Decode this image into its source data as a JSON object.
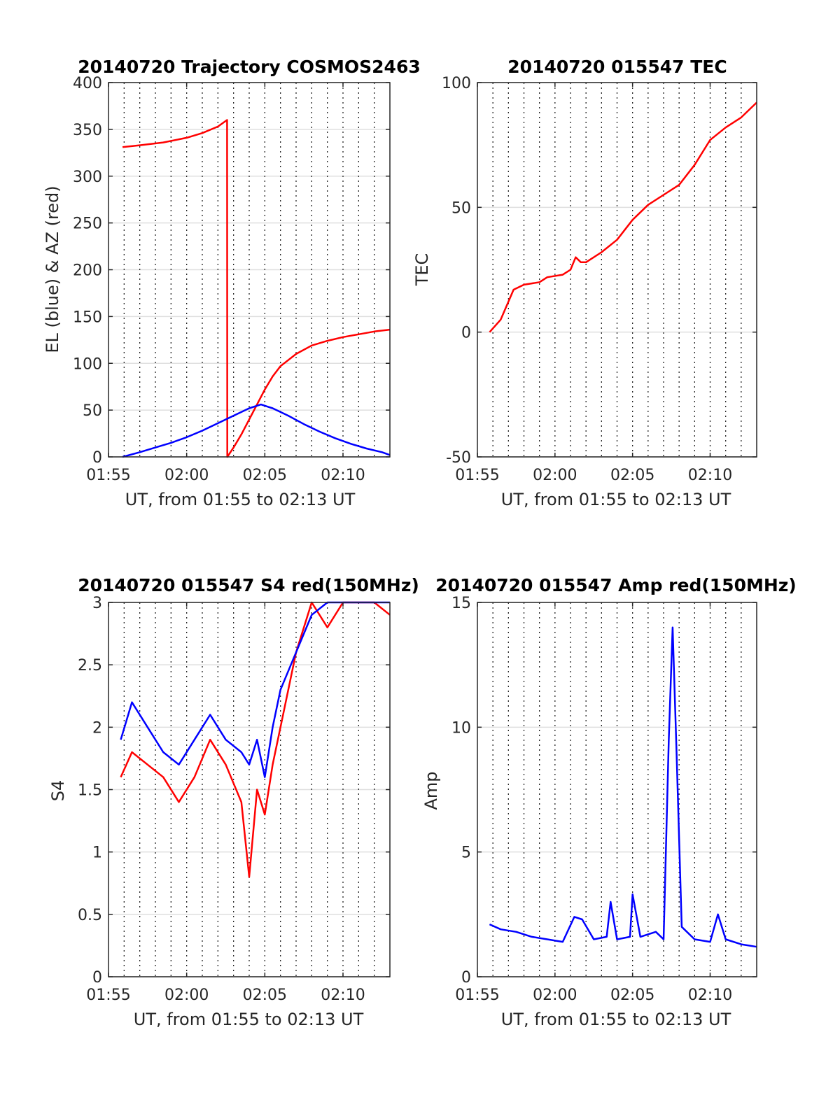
{
  "figure": {
    "background": "#ffffff",
    "colors": {
      "red": "#ff0000",
      "blue": "#0000ff",
      "axis": "#262626",
      "grid": "#dfdfdf"
    }
  },
  "chart_data": [
    {
      "id": "trajectory",
      "type": "line",
      "title": "20140720 Trajectory COSMOS2463",
      "xlabel": "UT, from 01:55 to 02:13 UT",
      "ylabel": "EL (blue) & AZ (red)",
      "xlim": [
        "01:55",
        "02:13"
      ],
      "ylim": [
        0,
        400
      ],
      "xticks": [
        "01:55",
        "02:00",
        "02:05",
        "02:10"
      ],
      "yticks": [
        "0",
        "50",
        "100",
        "150",
        "200",
        "250",
        "300",
        "350",
        "400"
      ],
      "grid": true,
      "series": [
        {
          "color": "#ff0000",
          "x": [
            "01:55:54",
            "01:57:00",
            "01:58:30",
            "02:00:00",
            "02:01:00",
            "02:02:00",
            "02:02:35",
            "02:02:36",
            "02:03:00",
            "02:03:30",
            "02:04:00",
            "02:04:30",
            "02:05:00",
            "02:05:30",
            "02:06:00",
            "02:07:00",
            "02:08:00",
            "02:09:00",
            "02:10:00",
            "02:11:00",
            "02:12:00",
            "02:13:00"
          ],
          "values": [
            331,
            333,
            336,
            341,
            346,
            353,
            360,
            0,
            10,
            24,
            40,
            56,
            72,
            86,
            97,
            110,
            119,
            124,
            128,
            131,
            134,
            136
          ]
        },
        {
          "color": "#0000ff",
          "x": [
            "01:55:54",
            "01:57:00",
            "01:58:00",
            "01:59:00",
            "02:00:00",
            "02:01:00",
            "02:02:00",
            "02:03:00",
            "02:04:00",
            "02:04:45",
            "02:05:30",
            "02:06:30",
            "02:07:30",
            "02:08:30",
            "02:09:30",
            "02:10:30",
            "02:11:30",
            "02:12:30",
            "02:13:00"
          ],
          "values": [
            0,
            5,
            10,
            15,
            21,
            28,
            36,
            44,
            52,
            56,
            52,
            44,
            35,
            27,
            20,
            14,
            9,
            5,
            2
          ]
        }
      ]
    },
    {
      "id": "tec",
      "type": "line",
      "title": "20140720 015547 TEC",
      "xlabel": "UT, from 01:55 to 02:13 UT",
      "ylabel": "TEC",
      "xlim": [
        "01:55",
        "02:13"
      ],
      "ylim": [
        -50,
        100
      ],
      "xticks": [
        "01:55",
        "02:00",
        "02:05",
        "02:10"
      ],
      "yticks": [
        "-50",
        "0",
        "50",
        "100"
      ],
      "grid": true,
      "series": [
        {
          "color": "#ff0000",
          "x": [
            "01:55:47",
            "01:56:30",
            "01:57:20",
            "01:58:00",
            "01:59:00",
            "01:59:30",
            "02:00:30",
            "02:01:00",
            "02:01:20",
            "02:01:40",
            "02:02:00",
            "02:03:00",
            "02:04:00",
            "02:05:00",
            "02:06:00",
            "02:07:00",
            "02:08:00",
            "02:09:00",
            "02:10:00",
            "02:11:00",
            "02:12:00",
            "02:13:00"
          ],
          "values": [
            0,
            5,
            17,
            19,
            20,
            22,
            23,
            25,
            30,
            28,
            28,
            32,
            37,
            45,
            51,
            55,
            59,
            67,
            77,
            82,
            86,
            92
          ]
        }
      ]
    },
    {
      "id": "s4",
      "type": "line",
      "title": "20140720 015547 S4 red(150MHz)",
      "xlabel": "UT, from 01:55 to 02:13 UT",
      "ylabel": "S4",
      "xlim": [
        "01:55",
        "02:13"
      ],
      "ylim": [
        0,
        3
      ],
      "xticks": [
        "01:55",
        "02:00",
        "02:05",
        "02:10"
      ],
      "yticks": [
        "0",
        "0.5",
        "1",
        "1.5",
        "2",
        "2.5",
        "3"
      ],
      "grid": true,
      "series": [
        {
          "color": "#ff0000",
          "x": [
            "01:55:47",
            "01:56:30",
            "01:57:30",
            "01:58:30",
            "01:59:30",
            "02:00:30",
            "02:01:30",
            "02:02:30",
            "02:03:30",
            "02:04:00",
            "02:04:30",
            "02:05:00",
            "02:05:30",
            "02:06:00",
            "02:07:00",
            "02:08:00",
            "02:09:00",
            "02:10:00",
            "02:11:00",
            "02:12:00",
            "02:13:00"
          ],
          "values": [
            1.6,
            1.8,
            1.7,
            1.6,
            1.4,
            1.6,
            1.9,
            1.7,
            1.4,
            0.8,
            1.5,
            1.3,
            1.7,
            2.0,
            2.6,
            3.0,
            2.8,
            3.0,
            3.0,
            3.0,
            2.9
          ]
        },
        {
          "color": "#0000ff",
          "x": [
            "01:55:47",
            "01:56:30",
            "01:57:30",
            "01:58:30",
            "01:59:30",
            "02:00:30",
            "02:01:30",
            "02:02:30",
            "02:03:30",
            "02:04:00",
            "02:04:30",
            "02:05:00",
            "02:05:30",
            "02:06:00",
            "02:07:00",
            "02:08:00",
            "02:09:00",
            "02:10:00",
            "02:11:00",
            "02:12:00",
            "02:13:00"
          ],
          "values": [
            1.9,
            2.2,
            2.0,
            1.8,
            1.7,
            1.9,
            2.1,
            1.9,
            1.8,
            1.7,
            1.9,
            1.6,
            2.0,
            2.3,
            2.6,
            2.9,
            3.0,
            3.0,
            3.0,
            3.0,
            3.0
          ]
        }
      ]
    },
    {
      "id": "amp",
      "type": "line",
      "title": "20140720 015547 Amp red(150MHz)",
      "xlabel": "UT, from 01:55 to 02:13 UT",
      "ylabel": "Amp",
      "xlim": [
        "01:55",
        "02:13"
      ],
      "ylim": [
        0,
        15
      ],
      "xticks": [
        "01:55",
        "02:00",
        "02:05",
        "02:10"
      ],
      "yticks": [
        "0",
        "5",
        "10",
        "15"
      ],
      "grid": true,
      "series": [
        {
          "color": "#0000ff",
          "x": [
            "01:55:47",
            "01:56:30",
            "01:57:30",
            "01:58:30",
            "01:59:30",
            "02:00:30",
            "02:01:15",
            "02:01:45",
            "02:02:30",
            "02:03:20",
            "02:03:35",
            "02:04:00",
            "02:04:50",
            "02:05:00",
            "02:05:30",
            "02:06:30",
            "02:07:00",
            "02:07:20",
            "02:07:35",
            "02:07:50",
            "02:08:10",
            "02:09:00",
            "02:10:00",
            "02:10:30",
            "02:11:00",
            "02:12:00",
            "02:13:00"
          ],
          "values": [
            2.1,
            1.9,
            1.8,
            1.6,
            1.5,
            1.4,
            2.4,
            2.3,
            1.5,
            1.6,
            3.0,
            1.5,
            1.6,
            3.3,
            1.6,
            1.8,
            1.5,
            9.5,
            14.0,
            9.0,
            2.0,
            1.5,
            1.4,
            2.5,
            1.5,
            1.3,
            1.2
          ]
        }
      ]
    }
  ]
}
